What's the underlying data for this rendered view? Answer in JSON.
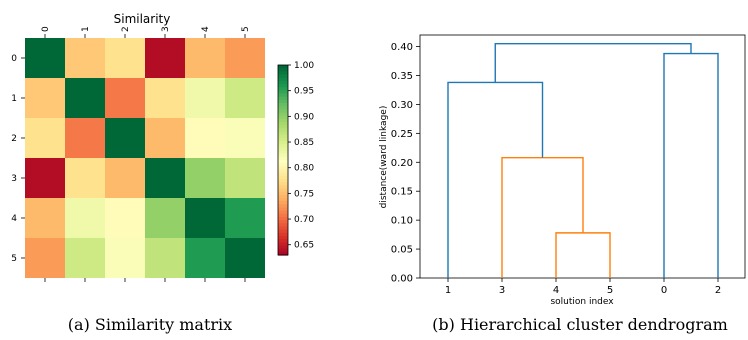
{
  "colors": {
    "cluster_a": "#1f77b4",
    "cluster_b": "#ff7f0e",
    "axis": "#000000"
  },
  "chart_data": [
    {
      "type": "heatmap",
      "title": "Similarity",
      "caption": "(a) Similarity matrix",
      "row_labels": [
        "0",
        "1",
        "2",
        "3",
        "4",
        "5"
      ],
      "col_labels": [
        "0",
        "1",
        "2",
        "3",
        "4",
        "5"
      ],
      "values": [
        [
          1.0,
          0.76,
          0.78,
          0.64,
          0.75,
          0.73
        ],
        [
          0.76,
          1.0,
          0.71,
          0.78,
          0.83,
          0.86
        ],
        [
          0.78,
          0.71,
          1.0,
          0.75,
          0.81,
          0.82
        ],
        [
          0.64,
          0.78,
          0.75,
          1.0,
          0.9,
          0.87
        ],
        [
          0.75,
          0.83,
          0.81,
          0.9,
          1.0,
          0.96
        ],
        [
          0.73,
          0.86,
          0.82,
          0.87,
          0.96,
          1.0
        ]
      ],
      "colormap": "RdYlGn",
      "colorbar": {
        "range": [
          0.63,
          1.0
        ],
        "ticks": [
          "1.00",
          "0.95",
          "0.90",
          "0.85",
          "0.80",
          "0.75",
          "0.70",
          "0.65"
        ]
      }
    },
    {
      "type": "dendrogram",
      "caption": "(b) Hierarchical cluster dendrogram",
      "xlabel": "solution index",
      "ylabel": "distance(ward linkage)",
      "leaves": [
        "1",
        "3",
        "4",
        "5",
        "0",
        "2"
      ],
      "ylim": [
        0,
        0.42
      ],
      "yticks": [
        "0.00",
        "0.05",
        "0.10",
        "0.15",
        "0.20",
        "0.25",
        "0.30",
        "0.35",
        "0.40"
      ],
      "merges": [
        {
          "children": [
            "4",
            "5"
          ],
          "height": 0.078,
          "color": "#ff7f0e"
        },
        {
          "children": [
            "3",
            "(4,5)"
          ],
          "height": 0.208,
          "color": "#ff7f0e"
        },
        {
          "children": [
            "1",
            "(3,4,5)"
          ],
          "height": 0.338,
          "color": "#1f77b4"
        },
        {
          "children": [
            "0",
            "2"
          ],
          "height": 0.388,
          "color": "#1f77b4"
        },
        {
          "children": [
            "(1,3,4,5)",
            "(0,2)"
          ],
          "height": 0.405,
          "color": "#1f77b4"
        }
      ]
    }
  ]
}
